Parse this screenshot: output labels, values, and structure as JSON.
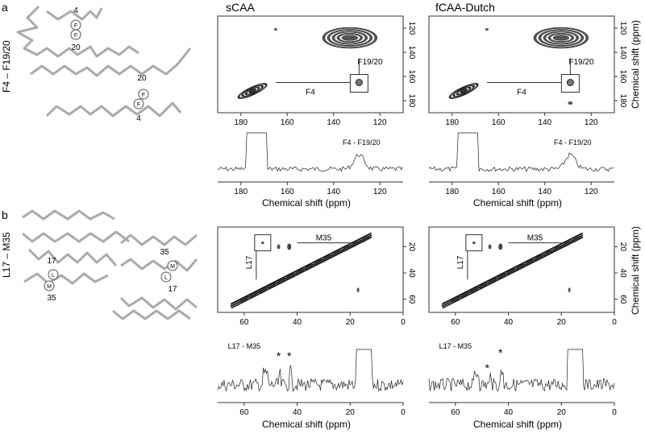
{
  "panels": {
    "a": {
      "letter": "a",
      "side_label": "F4 – F19/20",
      "cartoon": {
        "top_upper": "4",
        "top_lower": "20",
        "bot_upper": "20",
        "bot_lower": "4",
        "circle_letter": "F"
      },
      "left_title": "sCAA",
      "right_title": "fCAA-Dutch",
      "box_label": "F19/20",
      "diag_label": "F4",
      "spec_label": "F4 - F19/20",
      "ylabel": "Chemical shift (ppm)",
      "xlabel": "Chemical shift (ppm)"
    },
    "b": {
      "letter": "b",
      "side_label": "L17 – M35",
      "cartoon": {
        "top_upper": "17",
        "top_lower": "35",
        "bot_upper": "35",
        "bot_lower": "17",
        "left_top_letter": "L",
        "left_bot_letter": "M",
        "right_top_letter": "M",
        "right_bot_letter": "L"
      },
      "box_label": "L17",
      "diag_label": "M35",
      "spec_label": "L17 - M35",
      "star": "*",
      "ylabel": "Chemical shift (ppm)",
      "xlabel": "Chemical shift (ppm)"
    }
  },
  "chart_data": [
    {
      "type": "heatmap",
      "panel": "a",
      "name": "sCAA 2D",
      "x_ticks": [
        180,
        160,
        140,
        120
      ],
      "y_ticks": [
        120,
        140,
        160,
        180
      ],
      "xlim": [
        190,
        110
      ],
      "ylim": [
        110,
        190
      ],
      "cross_peaks": [
        [
          129,
          128
        ],
        [
          175,
          172
        ]
      ]
    },
    {
      "type": "heatmap",
      "panel": "a",
      "name": "fCAA-Dutch 2D",
      "x_ticks": [
        180,
        160,
        140,
        120
      ],
      "y_ticks": [
        120,
        140,
        160,
        180
      ],
      "xlim": [
        190,
        110
      ],
      "ylim": [
        110,
        190
      ],
      "cross_peaks": [
        [
          129,
          128
        ],
        [
          175,
          172
        ]
      ]
    },
    {
      "type": "line",
      "panel": "a",
      "name": "sCAA slice",
      "x_ticks": [
        180,
        160,
        140,
        120
      ],
      "xlim": [
        190,
        110
      ]
    },
    {
      "type": "line",
      "panel": "a",
      "name": "fCAA-Dutch slice",
      "x_ticks": [
        180,
        160,
        140,
        120
      ],
      "xlim": [
        190,
        110
      ]
    },
    {
      "type": "heatmap",
      "panel": "b",
      "name": "sCAA 2D",
      "x_ticks": [
        60,
        40,
        20,
        0
      ],
      "y_ticks": [
        20,
        40,
        60
      ],
      "xlim": [
        70,
        0
      ],
      "ylim": [
        5,
        70
      ],
      "cross_peaks": [
        [
          53,
          17
        ],
        [
          47,
          20
        ],
        [
          43,
          20
        ]
      ]
    },
    {
      "type": "heatmap",
      "panel": "b",
      "name": "fCAA-Dutch 2D",
      "x_ticks": [
        60,
        40,
        20,
        0
      ],
      "y_ticks": [
        20,
        40,
        60
      ],
      "xlim": [
        70,
        0
      ],
      "ylim": [
        5,
        70
      ],
      "cross_peaks": [
        [
          53,
          17
        ],
        [
          47,
          20
        ],
        [
          43,
          20
        ]
      ]
    },
    {
      "type": "line",
      "panel": "b",
      "name": "sCAA slice",
      "x_ticks": [
        60,
        40,
        20,
        0
      ],
      "xlim": [
        70,
        0
      ]
    },
    {
      "type": "line",
      "panel": "b",
      "name": "fCAA-Dutch slice",
      "x_ticks": [
        60,
        40,
        20,
        0
      ],
      "xlim": [
        70,
        0
      ]
    }
  ]
}
